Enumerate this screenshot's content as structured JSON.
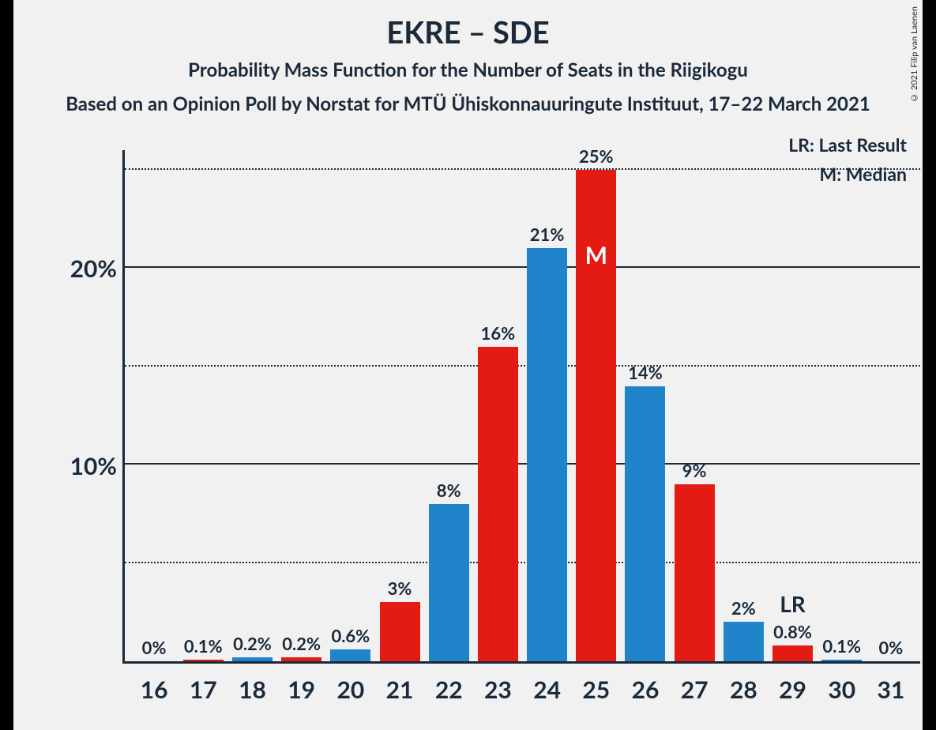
{
  "title": "EKRE – SDE",
  "subtitle": "Probability Mass Function for the Number of Seats in the Riigikogu",
  "source": "Based on an Opinion Poll by Norstat for MTÜ Ühiskonnauuringute Instituut, 17–22 March 2021",
  "copyright": "© 2021 Filip van Laenen",
  "legend": {
    "lr": "LR: Last Result",
    "m": "M: Median"
  },
  "chart": {
    "type": "bar",
    "ymax": 26,
    "colors": {
      "blue": "#1f84c9",
      "red": "#e31b13",
      "text": "#1a2a3a",
      "bg": "#f1f1f1"
    },
    "ylines": [
      {
        "val": 5,
        "style": "dotted",
        "label": ""
      },
      {
        "val": 10,
        "style": "solid",
        "label": "10%"
      },
      {
        "val": 15,
        "style": "dotted",
        "label": ""
      },
      {
        "val": 20,
        "style": "solid",
        "label": "20%"
      },
      {
        "val": 25,
        "style": "dotted",
        "label": ""
      }
    ],
    "bars": [
      {
        "x": "16",
        "val": 0.0,
        "label": "0%",
        "color": "blue"
      },
      {
        "x": "17",
        "val": 0.1,
        "label": "0.1%",
        "color": "red"
      },
      {
        "x": "18",
        "val": 0.2,
        "label": "0.2%",
        "color": "blue"
      },
      {
        "x": "19",
        "val": 0.2,
        "label": "0.2%",
        "color": "red"
      },
      {
        "x": "20",
        "val": 0.6,
        "label": "0.6%",
        "color": "blue"
      },
      {
        "x": "21",
        "val": 3,
        "label": "3%",
        "color": "red"
      },
      {
        "x": "22",
        "val": 8,
        "label": "8%",
        "color": "blue"
      },
      {
        "x": "23",
        "val": 16,
        "label": "16%",
        "color": "red"
      },
      {
        "x": "24",
        "val": 21,
        "label": "21%",
        "color": "blue"
      },
      {
        "x": "25",
        "val": 25,
        "label": "25%",
        "color": "red",
        "marker": "M"
      },
      {
        "x": "26",
        "val": 14,
        "label": "14%",
        "color": "blue"
      },
      {
        "x": "27",
        "val": 9,
        "label": "9%",
        "color": "red"
      },
      {
        "x": "28",
        "val": 2,
        "label": "2%",
        "color": "blue"
      },
      {
        "x": "29",
        "val": 0.8,
        "label": "0.8%",
        "color": "red",
        "lr": "LR"
      },
      {
        "x": "30",
        "val": 0.1,
        "label": "0.1%",
        "color": "blue"
      },
      {
        "x": "31",
        "val": 0.0,
        "label": "0%",
        "color": "red"
      }
    ]
  }
}
